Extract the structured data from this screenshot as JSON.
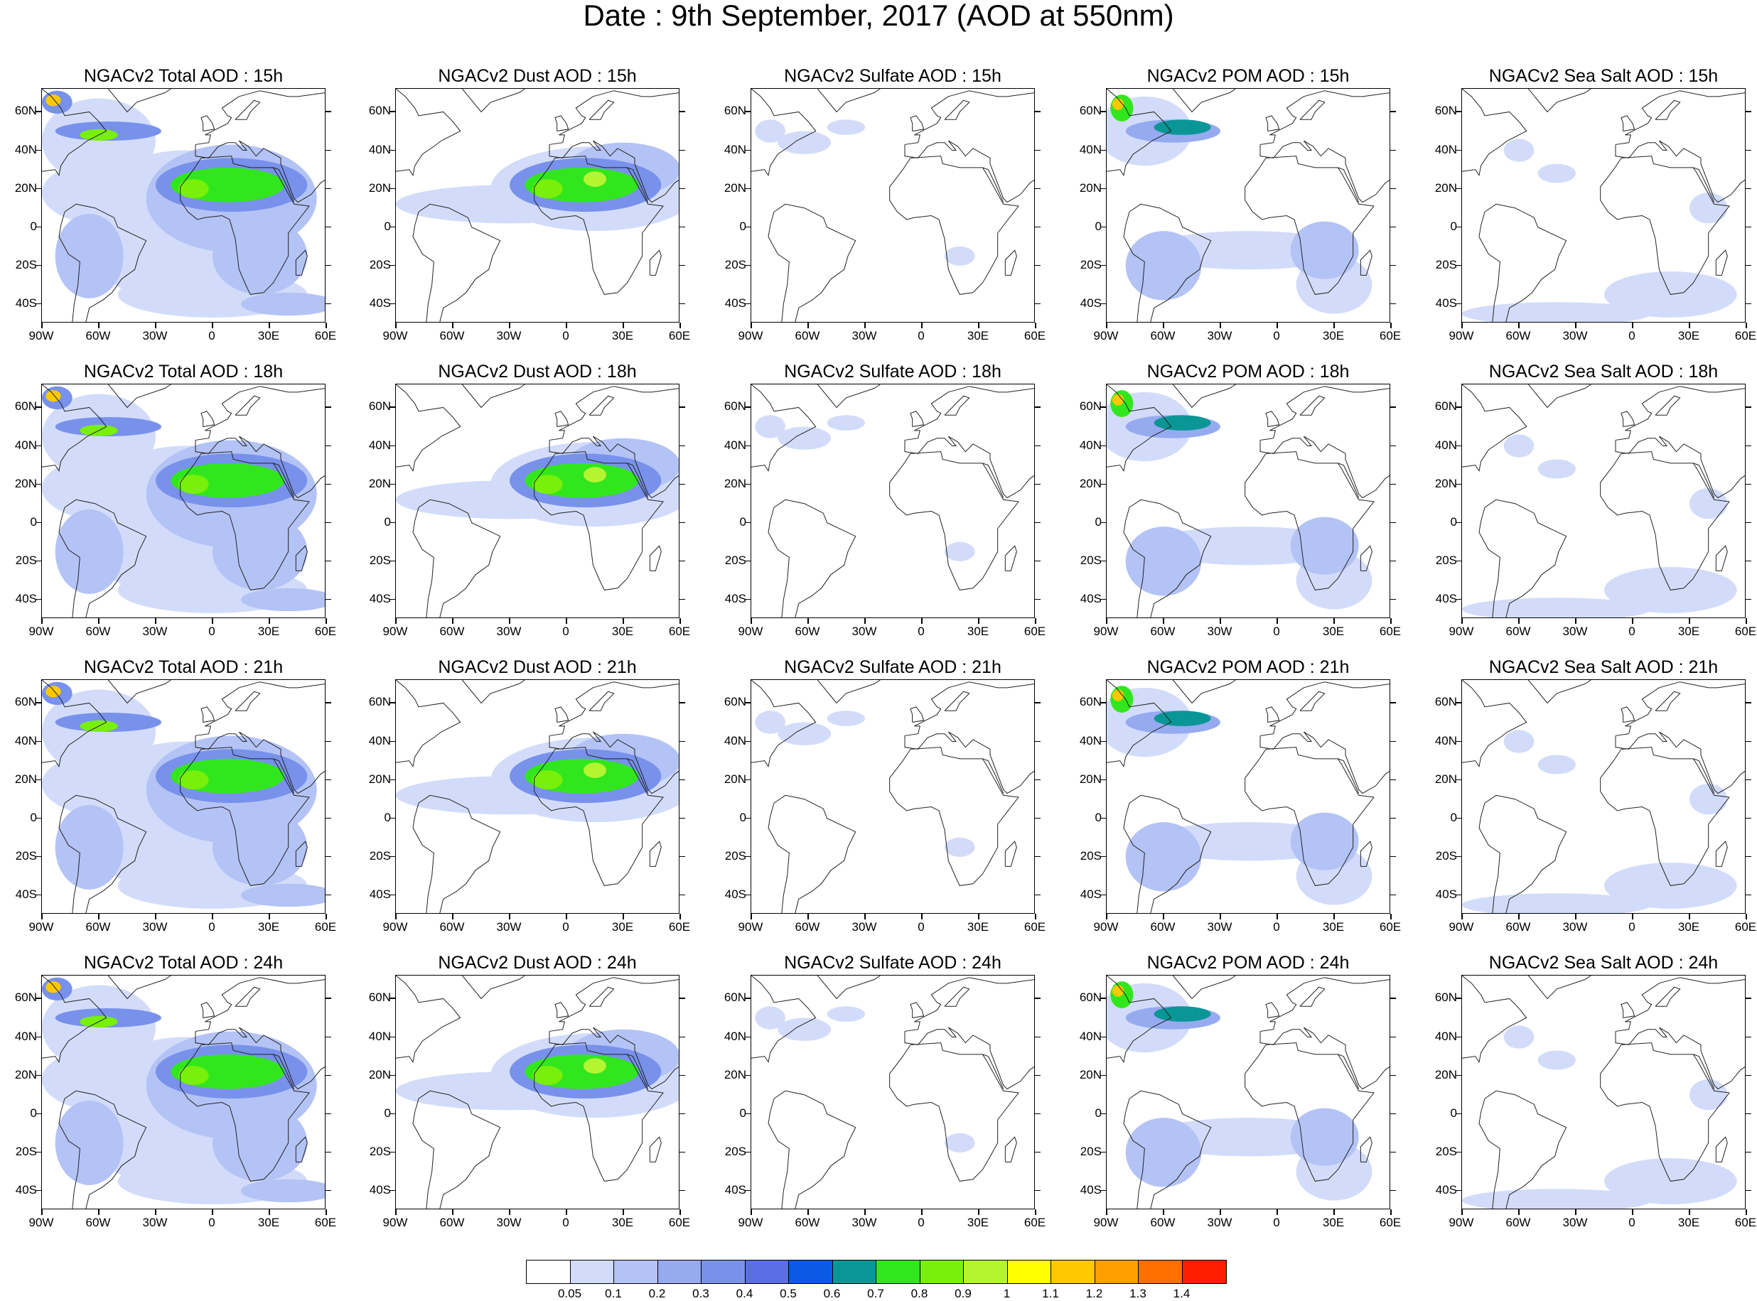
{
  "title": "Date : 9th September, 2017 (AOD at 550nm)",
  "panels": [
    [
      "NGACv2 Total AOD : 15h",
      "NGACv2 Dust AOD : 15h",
      "NGACv2 Sulfate AOD : 15h",
      "NGACv2 POM AOD : 15h",
      "NGACv2 Sea Salt AOD : 15h"
    ],
    [
      "NGACv2 Total AOD : 18h",
      "NGACv2 Dust AOD : 18h",
      "NGACv2 Sulfate AOD : 18h",
      "NGACv2 POM AOD : 18h",
      "NGACv2 Sea Salt AOD : 18h"
    ],
    [
      "NGACv2 Total AOD : 21h",
      "NGACv2 Dust AOD : 21h",
      "NGACv2 Sulfate AOD : 21h",
      "NGACv2 POM AOD : 21h",
      "NGACv2 Sea Salt AOD : 21h"
    ],
    [
      "NGACv2 Total AOD : 24h",
      "NGACv2 Dust AOD : 24h",
      "NGACv2 Sulfate AOD : 24h",
      "NGACv2 POM AOD : 24h",
      "NGACv2 Sea Salt  AOD : 24h"
    ]
  ],
  "lat_labels": [
    "60N",
    "40N",
    "20N",
    "0",
    "20S",
    "40S"
  ],
  "lon_labels": [
    "90W",
    "60W",
    "30W",
    "0",
    "30E",
    "60E"
  ],
  "colorbar": {
    "colors": [
      "#ffffff",
      "#d2dcfa",
      "#b4c3f5",
      "#96aaf0",
      "#7891eb",
      "#5a6ee6",
      "#0a5ae6",
      "#0a9696",
      "#32e61e",
      "#78f00a",
      "#b4f532",
      "#ffff00",
      "#ffc800",
      "#ffa000",
      "#ff6e00",
      "#ff1e00"
    ],
    "labels": [
      "0.05",
      "0.1",
      "0.2",
      "0.3",
      "0.4",
      "0.5",
      "0.6",
      "0.7",
      "0.8",
      "0.9",
      "1",
      "1.1",
      "1.2",
      "1.3",
      "1.4"
    ]
  }
}
